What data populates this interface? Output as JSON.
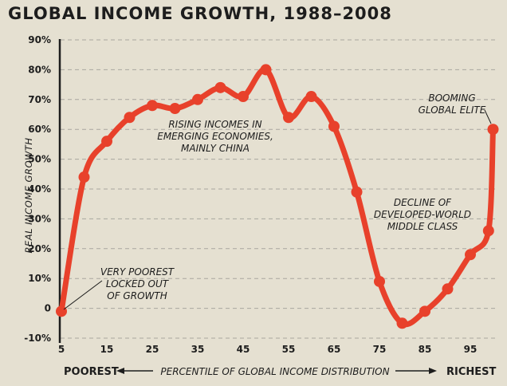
{
  "chart_data": {
    "type": "line",
    "title": "GLOBAL INCOME GROWTH, 1988–2008",
    "ylabel": "REAL INCOME GROWTH",
    "xlabel": "PERCENTILE OF GLOBAL INCOME DISTRIBUTION",
    "x_left_label": "POOREST",
    "x_right_label": "RICHEST",
    "ylim": [
      -10,
      90
    ],
    "xlim": [
      5,
      100
    ],
    "grid": true,
    "y_ticks": [
      90,
      80,
      70,
      60,
      50,
      40,
      30,
      20,
      10,
      0,
      -10
    ],
    "y_tick_labels": [
      "90%",
      "80%",
      "70%",
      "60%",
      "50%",
      "40%",
      "30%",
      "20%",
      "10%",
      "0",
      "-10%"
    ],
    "x_ticks": [
      5,
      15,
      25,
      35,
      45,
      55,
      65,
      75,
      85,
      95
    ],
    "x_tick_labels": [
      "5",
      "15",
      "25",
      "35",
      "45",
      "55",
      "65",
      "75",
      "85",
      "95"
    ],
    "line_color": "#e8412b",
    "x": [
      5,
      10,
      15,
      20,
      25,
      30,
      35,
      40,
      45,
      50,
      55,
      60,
      65,
      70,
      75,
      80,
      85,
      90,
      95,
      99,
      100
    ],
    "y": [
      -1,
      44,
      56,
      64,
      68,
      67,
      70,
      74,
      71,
      80,
      64,
      71,
      61,
      39,
      9,
      -5,
      -1,
      6.5,
      18,
      26,
      60
    ],
    "annotations": [
      {
        "lines": [
          "RISING INCOMES IN",
          "EMERGING ECONOMIES,",
          "MAINLY CHINA"
        ]
      },
      {
        "lines": [
          "BOOMING",
          "GLOBAL ELITE"
        ]
      },
      {
        "lines": [
          "DECLINE OF",
          "DEVELOPED-WORLD",
          "MIDDLE CLASS"
        ]
      },
      {
        "lines": [
          "VERY POOREST",
          "LOCKED OUT",
          "OF GROWTH"
        ]
      }
    ]
  }
}
